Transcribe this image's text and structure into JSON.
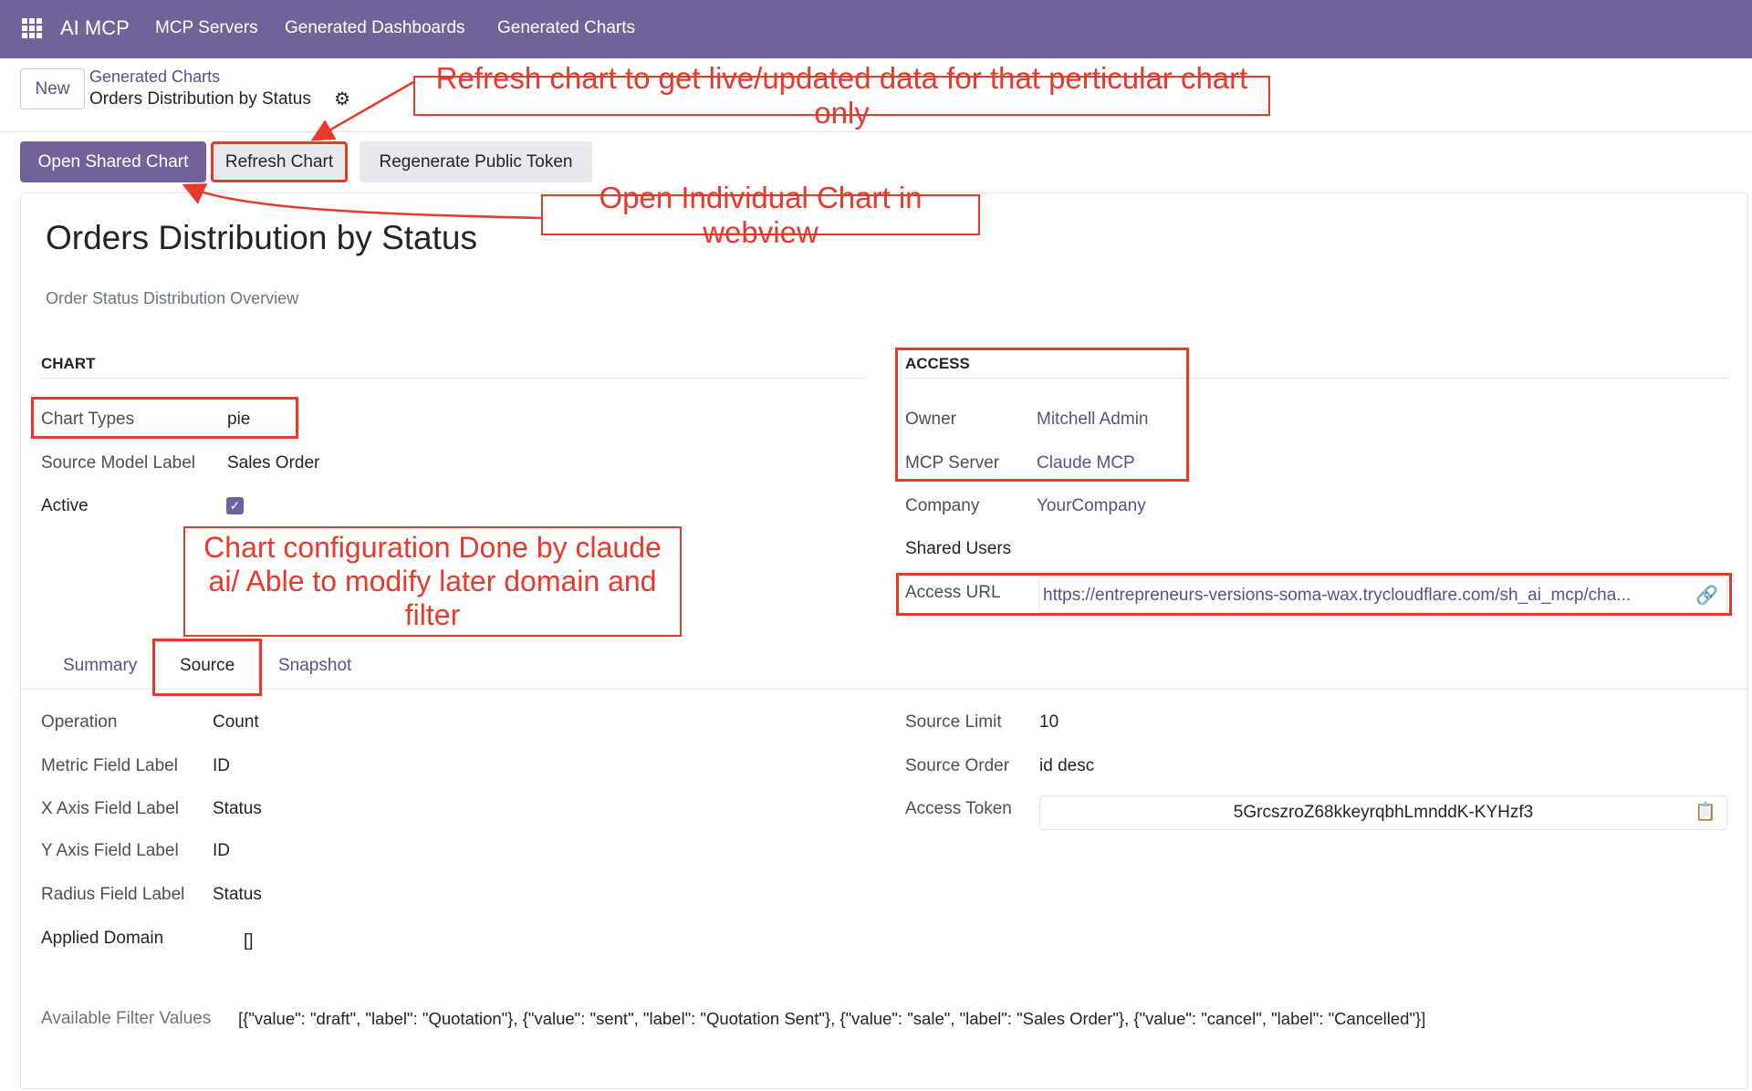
{
  "navbar": {
    "app_name": "AI MCP",
    "menu": [
      "MCP Servers",
      "Generated Dashboards",
      "Generated Charts"
    ],
    "color": "#6f6399"
  },
  "control": {
    "new_label": "New",
    "breadcrumb_parent": "Generated Charts",
    "breadcrumb_current": "Orders Distribution by Status"
  },
  "actions": {
    "open_shared": "Open Shared Chart",
    "refresh": "Refresh Chart",
    "regenerate": "Regenerate Public Token"
  },
  "record": {
    "title": "Orders Distribution by Status",
    "subtitle": "Order Status Distribution Overview"
  },
  "chart_section": {
    "heading": "CHART",
    "fields": [
      {
        "label": "Chart Types",
        "value": "pie"
      },
      {
        "label": "Source Model Label",
        "value": "Sales Order"
      },
      {
        "label": "Active",
        "checked": true
      }
    ]
  },
  "access_section": {
    "heading": "ACCESS",
    "owner_label": "Owner",
    "owner": "Mitchell Admin",
    "server_label": "MCP Server",
    "server": "Claude MCP",
    "company_label": "Company",
    "company": "YourCompany",
    "shared_users_label": "Shared Users",
    "url_label": "Access URL",
    "url": "https://entrepreneurs-versions-soma-wax.trycloudflare.com/sh_ai_mcp/cha..."
  },
  "tabs": [
    {
      "label": "Summary"
    },
    {
      "label": "Source",
      "active": true
    },
    {
      "label": "Snapshot"
    }
  ],
  "source": {
    "left": [
      {
        "label": "Operation",
        "value": "Count"
      },
      {
        "label": "Metric Field Label",
        "value": "ID"
      },
      {
        "label": "X Axis Field Label",
        "value": "Status"
      },
      {
        "label": "Y Axis Field Label",
        "value": "ID"
      },
      {
        "label": "Radius Field Label",
        "value": "Status"
      }
    ],
    "domain_label": "Applied Domain",
    "domain": "[]",
    "right": [
      {
        "label": "Source Limit",
        "value": "10"
      },
      {
        "label": "Source Order",
        "value": "id desc"
      }
    ],
    "token_label": "Access Token",
    "token": "5GrcszroZ68kkeyrqbhLmnddK-KYHzf3",
    "filter_label": "Available Filter Values",
    "filter_values": "[{\"value\": \"draft\", \"label\": \"Quotation\"}, {\"value\": \"sent\", \"label\": \"Quotation Sent\"}, {\"value\": \"sale\", \"label\": \"Sales Order\"}, {\"value\": \"cancel\", \"label\": \"Cancelled\"}]"
  },
  "annotations": {
    "refresh": "Refresh chart to get live/updated data for that perticular chart only",
    "open": "Open Individual Chart in webview",
    "config": [
      "Chart configuration Done by claude",
      "ai/ Able to modify later domain and",
      "filter"
    ],
    "color": "#e8392b"
  }
}
